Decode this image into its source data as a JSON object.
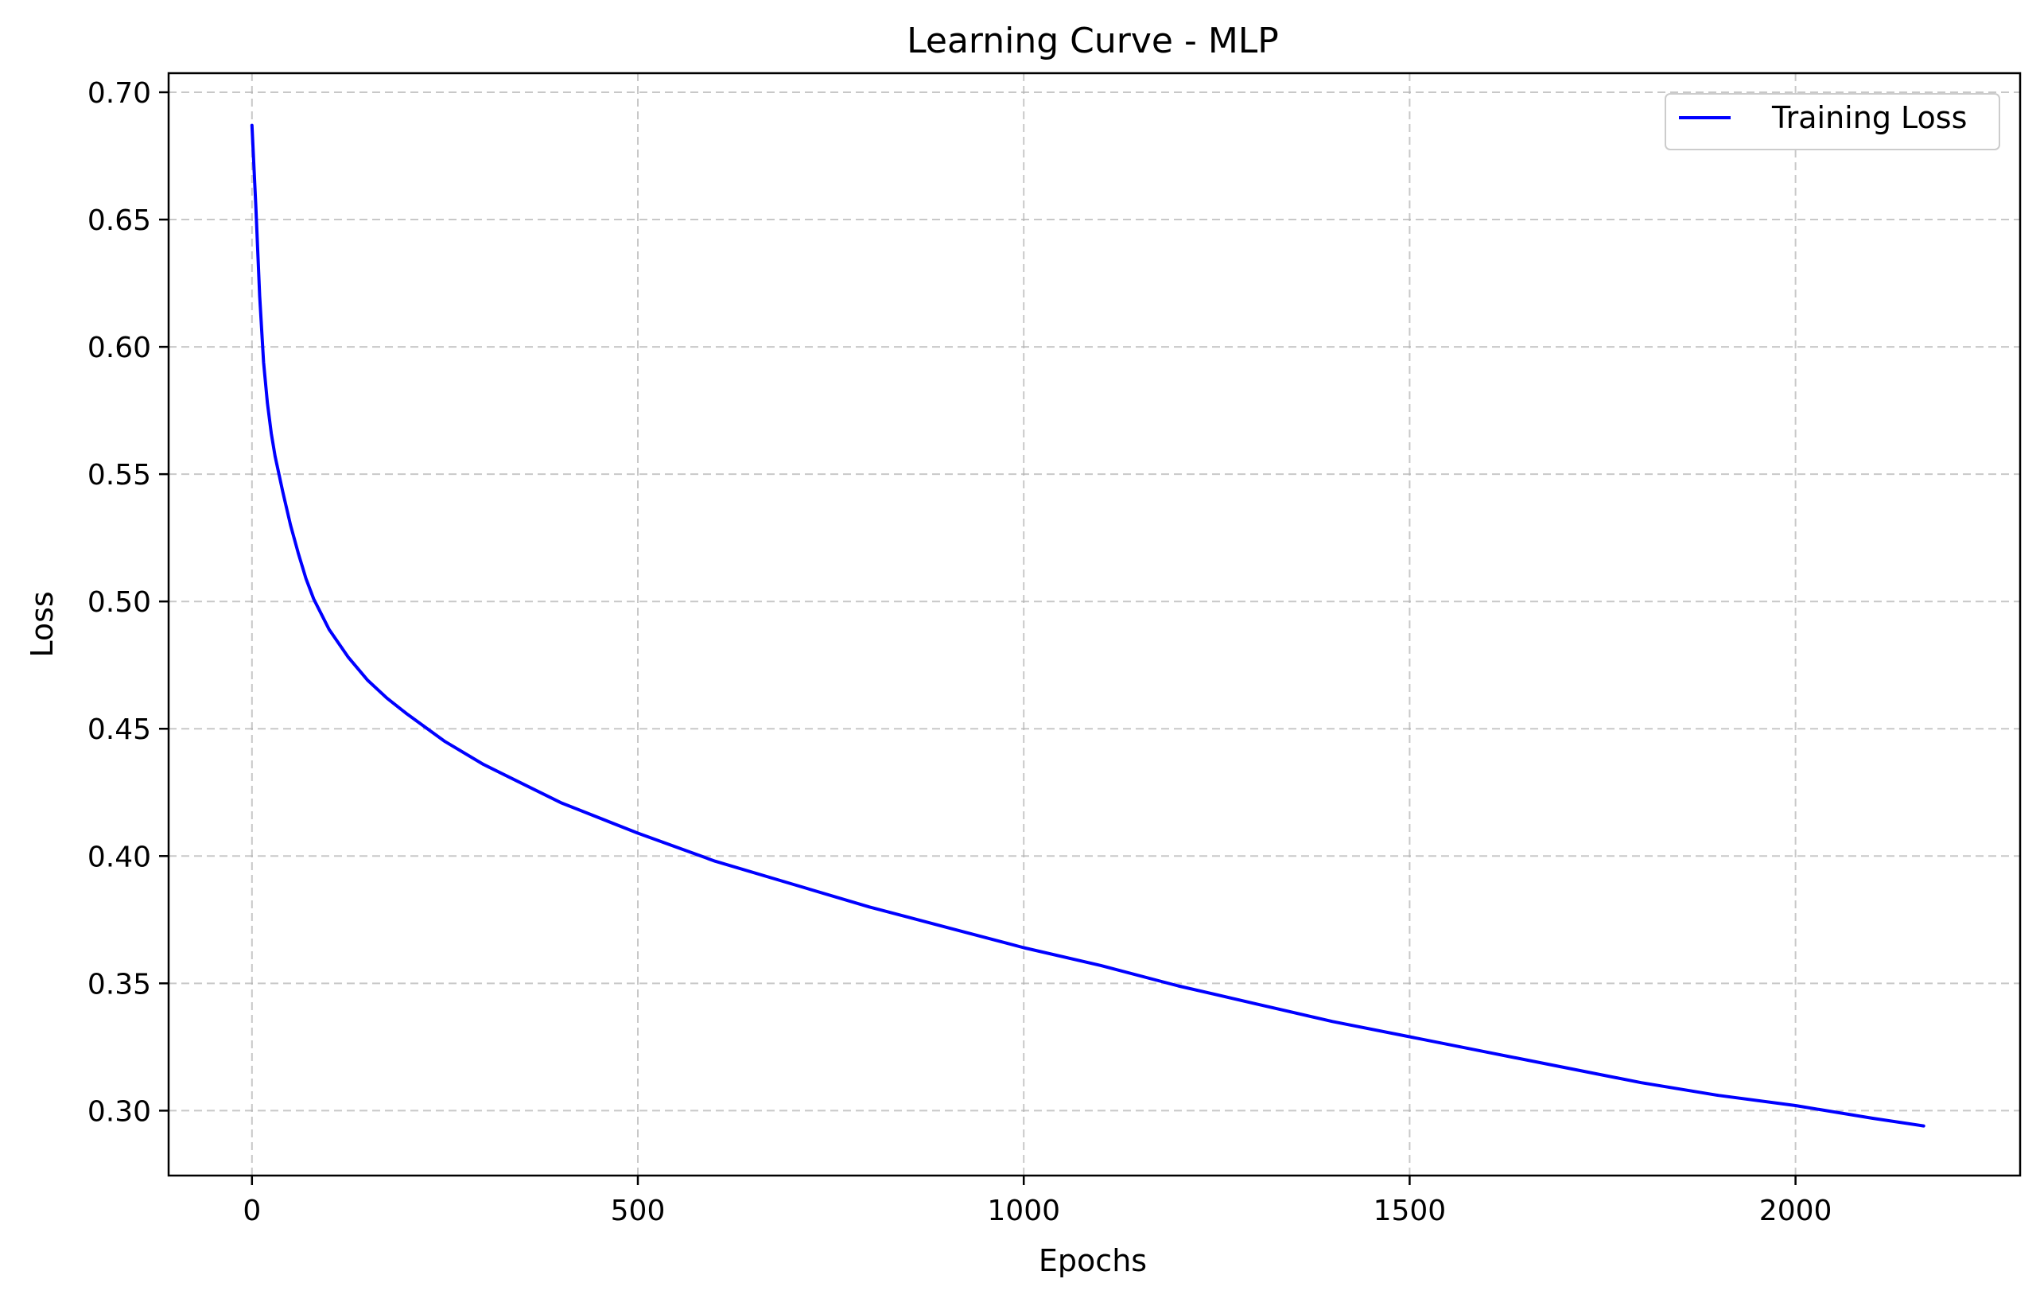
{
  "chart_data": {
    "type": "line",
    "title": "Learning Curve - MLP",
    "xlabel": "Epochs",
    "ylabel": "Loss",
    "xlim": [
      -108,
      2291
    ],
    "ylim": [
      0.2745,
      0.7075
    ],
    "x_ticks": [
      0,
      500,
      1000,
      1500,
      2000
    ],
    "x_tick_labels": [
      "0",
      "500",
      "1000",
      "1500",
      "2000"
    ],
    "y_ticks": [
      0.3,
      0.35,
      0.4,
      0.45,
      0.5,
      0.55,
      0.6,
      0.65,
      0.7
    ],
    "y_tick_labels": [
      "0.30",
      "0.35",
      "0.40",
      "0.45",
      "0.50",
      "0.55",
      "0.60",
      "0.65",
      "0.70"
    ],
    "grid": true,
    "grid_style": "dashed",
    "legend_position": "top-right",
    "series": [
      {
        "name": "Training Loss",
        "color": "#0000ff",
        "x": [
          0,
          5,
          10,
          15,
          20,
          25,
          30,
          40,
          50,
          60,
          70,
          80,
          90,
          100,
          125,
          150,
          175,
          200,
          250,
          300,
          400,
          500,
          600,
          700,
          800,
          900,
          1000,
          1100,
          1200,
          1300,
          1400,
          1500,
          1600,
          1700,
          1800,
          1900,
          2000,
          2100,
          2166
        ],
        "y": [
          0.687,
          0.655,
          0.62,
          0.594,
          0.578,
          0.566,
          0.557,
          0.543,
          0.53,
          0.519,
          0.509,
          0.501,
          0.495,
          0.489,
          0.478,
          0.469,
          0.462,
          0.456,
          0.445,
          0.436,
          0.421,
          0.409,
          0.398,
          0.389,
          0.38,
          0.372,
          0.364,
          0.357,
          0.349,
          0.342,
          0.335,
          0.329,
          0.323,
          0.317,
          0.311,
          0.306,
          0.302,
          0.297,
          0.294
        ]
      }
    ]
  }
}
